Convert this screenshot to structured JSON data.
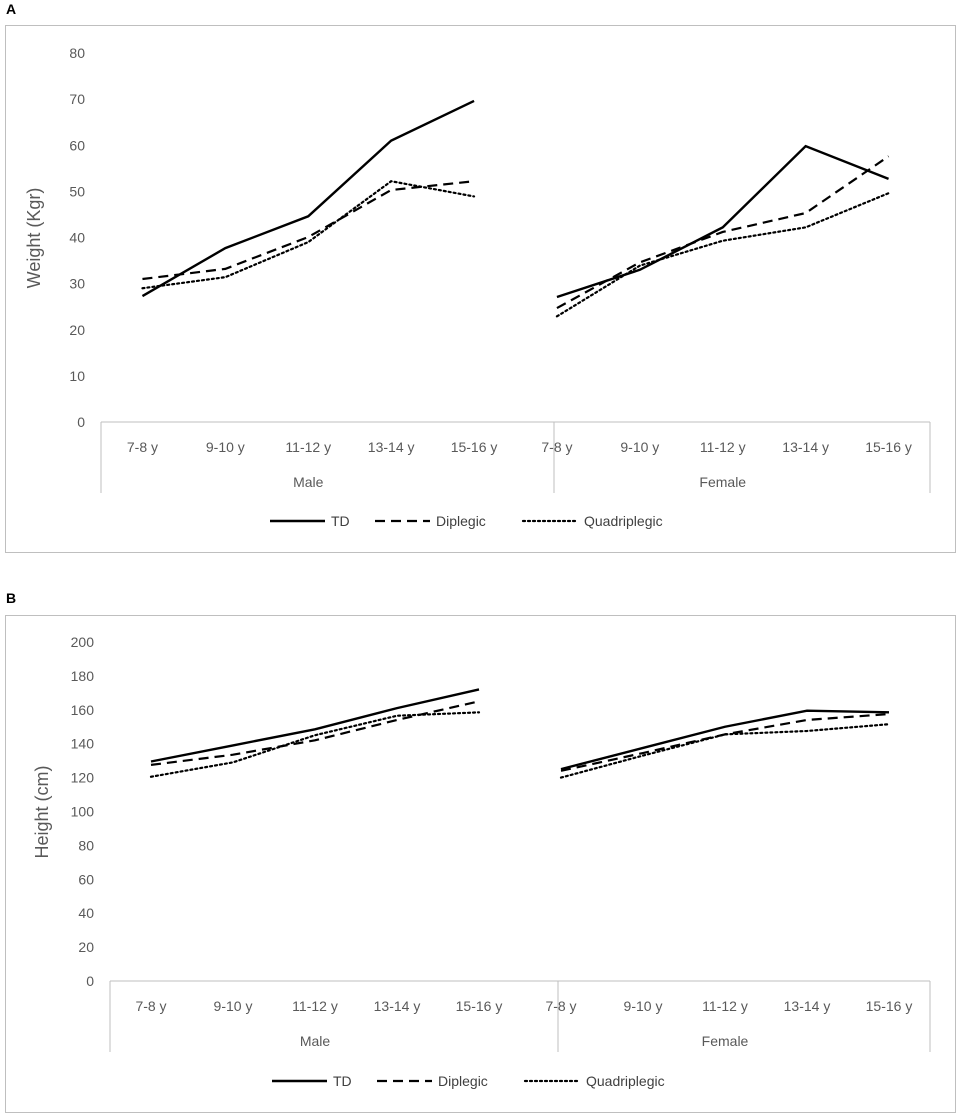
{
  "panels": [
    {
      "letter": "A"
    },
    {
      "letter": "B"
    }
  ],
  "chart_data": [
    {
      "type": "line",
      "panel": "A",
      "ylabel": "Weight (Kgr)",
      "ylim": [
        0,
        80
      ],
      "yticks": [
        0,
        10,
        20,
        30,
        40,
        50,
        60,
        70,
        80
      ],
      "grid": false,
      "groups": [
        {
          "name": "Male",
          "categories": [
            "7-8 y",
            "9-10 y",
            "11-12 y",
            "13-14 y",
            "15-16 y"
          ]
        },
        {
          "name": "Female",
          "categories": [
            "7-8 y",
            "9-10 y",
            "11-12 y",
            "13-14 y",
            "15-16 y"
          ]
        }
      ],
      "series": [
        {
          "name": "TD",
          "style": "solid",
          "male": [
            27.3,
            37.7,
            44.6,
            61.0,
            69.6
          ],
          "female": [
            27.1,
            33.0,
            42.2,
            59.8,
            52.7
          ]
        },
        {
          "name": "Diplegic",
          "style": "dashed",
          "male": [
            31.0,
            33.2,
            40.1,
            50.3,
            52.2
          ],
          "female": [
            24.7,
            34.6,
            41.2,
            45.3,
            57.6
          ]
        },
        {
          "name": "Quadriplegic",
          "style": "dotted",
          "male": [
            29.0,
            31.4,
            39.0,
            52.2,
            48.9
          ],
          "female": [
            22.9,
            33.9,
            39.3,
            42.2,
            49.6
          ]
        }
      ],
      "legend": [
        "TD",
        "Diplegic",
        "Quadriplegic"
      ],
      "legend_position": "bottom"
    },
    {
      "type": "line",
      "panel": "B",
      "ylabel": "Height (cm)",
      "ylim": [
        0,
        200
      ],
      "yticks": [
        0,
        20,
        40,
        60,
        80,
        100,
        120,
        140,
        160,
        180,
        200
      ],
      "grid": false,
      "groups": [
        {
          "name": "Male",
          "categories": [
            "7-8 y",
            "9-10 y",
            "11-12 y",
            "13-14 y",
            "15-16 y"
          ]
        },
        {
          "name": "Female",
          "categories": [
            "7-8 y",
            "9-10 y",
            "11-12 y",
            "13-14 y",
            "15-16 y"
          ]
        }
      ],
      "series": [
        {
          "name": "TD",
          "style": "solid",
          "male": [
            129.5,
            139.0,
            148.5,
            161.0,
            172.0
          ],
          "female": [
            125.0,
            137.5,
            150.0,
            159.5,
            158.5
          ]
        },
        {
          "name": "Diplegic",
          "style": "dashed",
          "male": [
            127.5,
            133.5,
            142.0,
            154.0,
            165.0
          ],
          "female": [
            124.0,
            134.5,
            145.5,
            154.0,
            157.5
          ]
        },
        {
          "name": "Quadriplegic",
          "style": "dotted",
          "male": [
            120.5,
            129.0,
            145.0,
            156.5,
            158.5
          ],
          "female": [
            120.0,
            133.0,
            145.5,
            147.5,
            151.5
          ]
        }
      ],
      "legend": [
        "TD",
        "Diplegic",
        "Quadriplegic"
      ],
      "legend_position": "bottom"
    }
  ]
}
